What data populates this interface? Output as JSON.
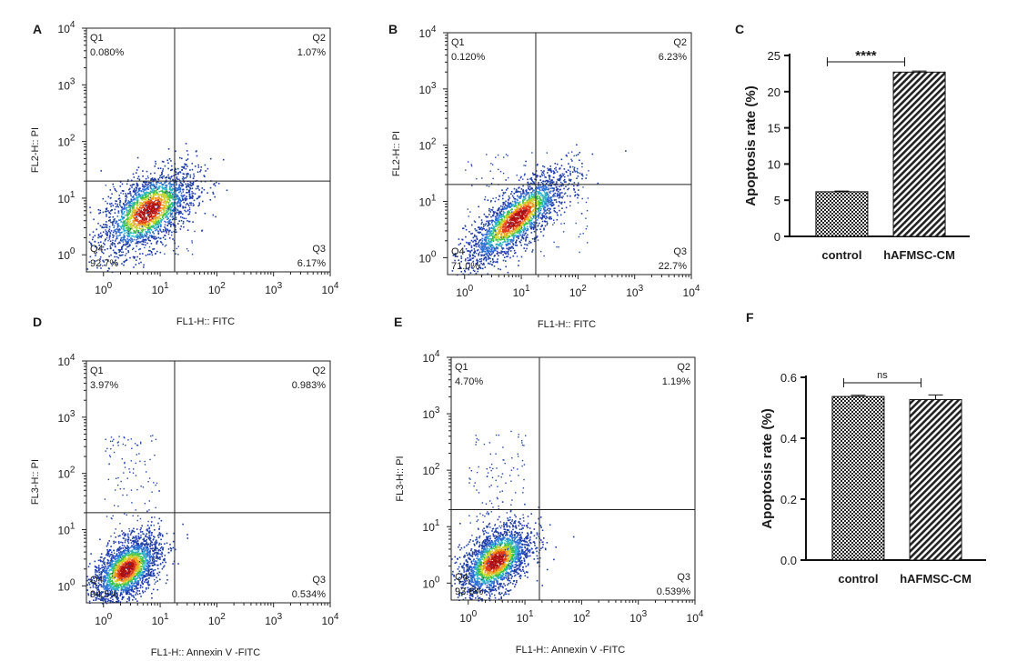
{
  "chart_data": [
    {
      "panel": "A",
      "type": "scatter",
      "subtype": "flow-cytometry-density",
      "xlabel": "FL1-H:: FITC",
      "ylabel": "FL2-H:: PI",
      "xlim": [
        0.5,
        10000
      ],
      "ylim": [
        0.5,
        10000
      ],
      "x_ticks": [
        "10^0",
        "10^1",
        "10^2",
        "10^3",
        "10^4"
      ],
      "y_ticks": [
        "10^0",
        "10^1",
        "10^2",
        "10^3",
        "10^4"
      ],
      "gate": {
        "x": 18,
        "y": 20
      },
      "quadrants": [
        {
          "name": "Q1",
          "value": "0.080%"
        },
        {
          "name": "Q2",
          "value": "1.07%"
        },
        {
          "name": "Q3",
          "value": "6.17%"
        },
        {
          "name": "Q4",
          "value": "92.7%"
        }
      ],
      "cluster": {
        "center": [
          6,
          6
        ],
        "spread": [
          0.42,
          0.38
        ],
        "corr": 0.55,
        "tail": [
          40,
          25
        ]
      }
    },
    {
      "panel": "B",
      "type": "scatter",
      "subtype": "flow-cytometry-density",
      "xlabel": "FL1-H:: FITC",
      "ylabel": "FL2-H:: PI",
      "xlim": [
        0.5,
        10000
      ],
      "ylim": [
        0.5,
        10000
      ],
      "x_ticks": [
        "10^0",
        "10^1",
        "10^2",
        "10^3",
        "10^4"
      ],
      "y_ticks": [
        "10^0",
        "10^1",
        "10^2",
        "10^3",
        "10^4"
      ],
      "gate": {
        "x": 18,
        "y": 20
      },
      "quadrants": [
        {
          "name": "Q1",
          "value": "0.120%"
        },
        {
          "name": "Q2",
          "value": "6.23%"
        },
        {
          "name": "Q3",
          "value": "22.7%"
        },
        {
          "name": "Q4",
          "value": "71.0%"
        }
      ],
      "cluster": {
        "center": [
          8,
          5
        ],
        "spread": [
          0.45,
          0.42
        ],
        "corr": 0.8,
        "tail": [
          150,
          80
        ]
      }
    },
    {
      "panel": "C",
      "type": "bar",
      "categories": [
        "control",
        "hAFMSC-CM"
      ],
      "values": [
        6.17,
        22.7
      ],
      "errors": [
        0.1,
        0.15
      ],
      "ylabel": "Apoptosis rate (%)",
      "ylim": [
        0,
        25
      ],
      "y_ticks": [
        0,
        5,
        10,
        15,
        20,
        25
      ],
      "significance": "****"
    },
    {
      "panel": "D",
      "type": "scatter",
      "subtype": "flow-cytometry-density",
      "xlabel": "FL1-H:: Annexin V -FITC",
      "ylabel": "FL3-H:: PI",
      "xlim": [
        0.5,
        10000
      ],
      "ylim": [
        0.5,
        10000
      ],
      "x_ticks": [
        "10^0",
        "10^1",
        "10^2",
        "10^3",
        "10^4"
      ],
      "y_ticks": [
        "10^0",
        "10^1",
        "10^2",
        "10^3",
        "10^4"
      ],
      "gate": {
        "x": 18,
        "y": 20
      },
      "quadrants": [
        {
          "name": "Q1",
          "value": "3.97%"
        },
        {
          "name": "Q2",
          "value": "0.983%"
        },
        {
          "name": "Q3",
          "value": "0.534%"
        },
        {
          "name": "Q4",
          "value": "94.5%"
        }
      ],
      "cluster": {
        "center": [
          2.5,
          2
        ],
        "spread": [
          0.3,
          0.3
        ],
        "corr": 0.5,
        "tail": [
          10,
          500
        ]
      }
    },
    {
      "panel": "E",
      "type": "scatter",
      "subtype": "flow-cytometry-density",
      "xlabel": "FL1-H:: Annexin V -FITC",
      "ylabel": "FL3-H:: PI",
      "xlim": [
        0.5,
        10000
      ],
      "ylim": [
        0.5,
        10000
      ],
      "x_ticks": [
        "10^0",
        "10^1",
        "10^2",
        "10^3",
        "10^4"
      ],
      "y_ticks": [
        "10^0",
        "10^1",
        "10^2",
        "10^3",
        "10^4"
      ],
      "gate": {
        "x": 18,
        "y": 20
      },
      "quadrants": [
        {
          "name": "Q1",
          "value": "4.70%"
        },
        {
          "name": "Q2",
          "value": "1.19%"
        },
        {
          "name": "Q3",
          "value": "0.539%"
        },
        {
          "name": "Q4",
          "value": "93.6%"
        }
      ],
      "cluster": {
        "center": [
          3,
          2.5
        ],
        "spread": [
          0.32,
          0.32
        ],
        "corr": 0.5,
        "tail": [
          10,
          500
        ]
      }
    },
    {
      "panel": "F",
      "type": "bar",
      "categories": [
        "control",
        "hAFMSC-CM"
      ],
      "values": [
        0.537,
        0.527
      ],
      "errors": [
        0.004,
        0.015
      ],
      "ylabel": "Apoptosis rate (%)",
      "ylim": [
        0,
        0.6
      ],
      "y_ticks": [
        "0.0",
        "0.2",
        "0.4",
        "0.6"
      ],
      "significance": "ns"
    }
  ]
}
